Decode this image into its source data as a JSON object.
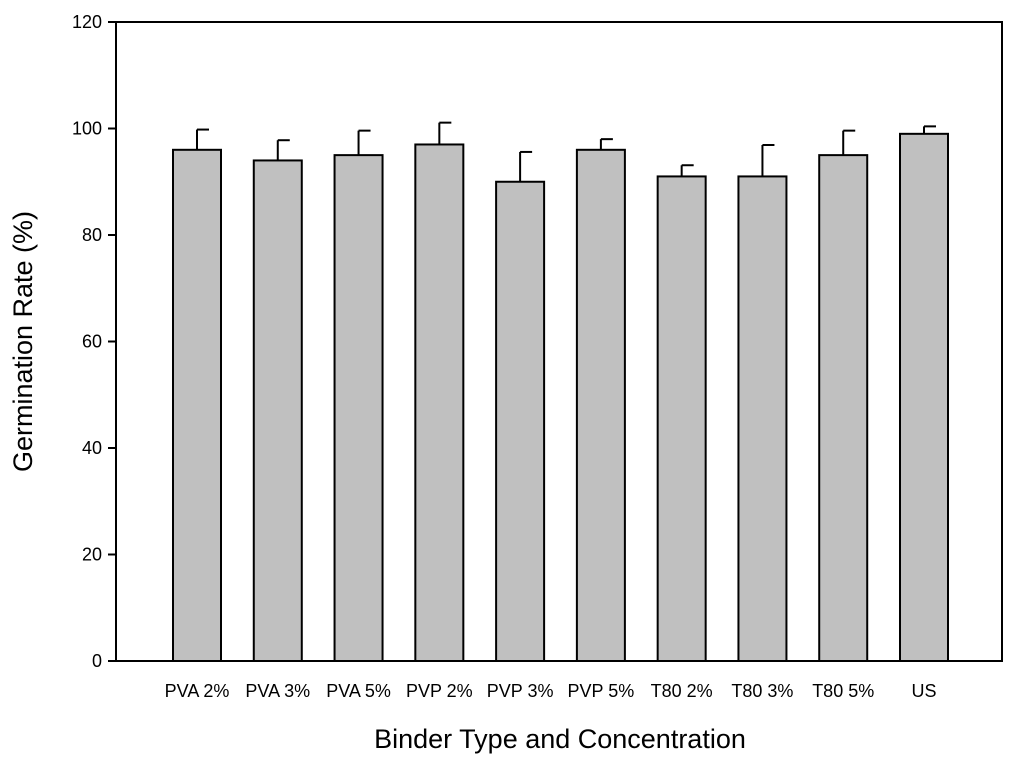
{
  "chart_data": {
    "type": "bar",
    "title": "",
    "xlabel": "Binder Type and Concentration",
    "ylabel": "Germination Rate (%)",
    "categories": [
      "PVA 2%",
      "PVA 3%",
      "PVA 5%",
      "PVP 2%",
      "PVP 3%",
      "PVP 5%",
      "T80 2%",
      "T80 3%",
      "T80 5%",
      "US"
    ],
    "series": [
      {
        "values": [
          96,
          94,
          95,
          97,
          90,
          96,
          91,
          91,
          95,
          99
        ],
        "error_plus": [
          3.8,
          3.8,
          4.6,
          4.1,
          5.6,
          2.0,
          2.1,
          5.9,
          4.6,
          1.4
        ]
      }
    ],
    "ylim": [
      0,
      120
    ],
    "yticks": [
      0,
      20,
      40,
      60,
      80,
      100,
      120
    ],
    "grid": false,
    "legend": "none",
    "colors": {
      "bar_fill": "#c0c0c0",
      "bar_stroke": "#000000",
      "axis": "#000000"
    }
  }
}
